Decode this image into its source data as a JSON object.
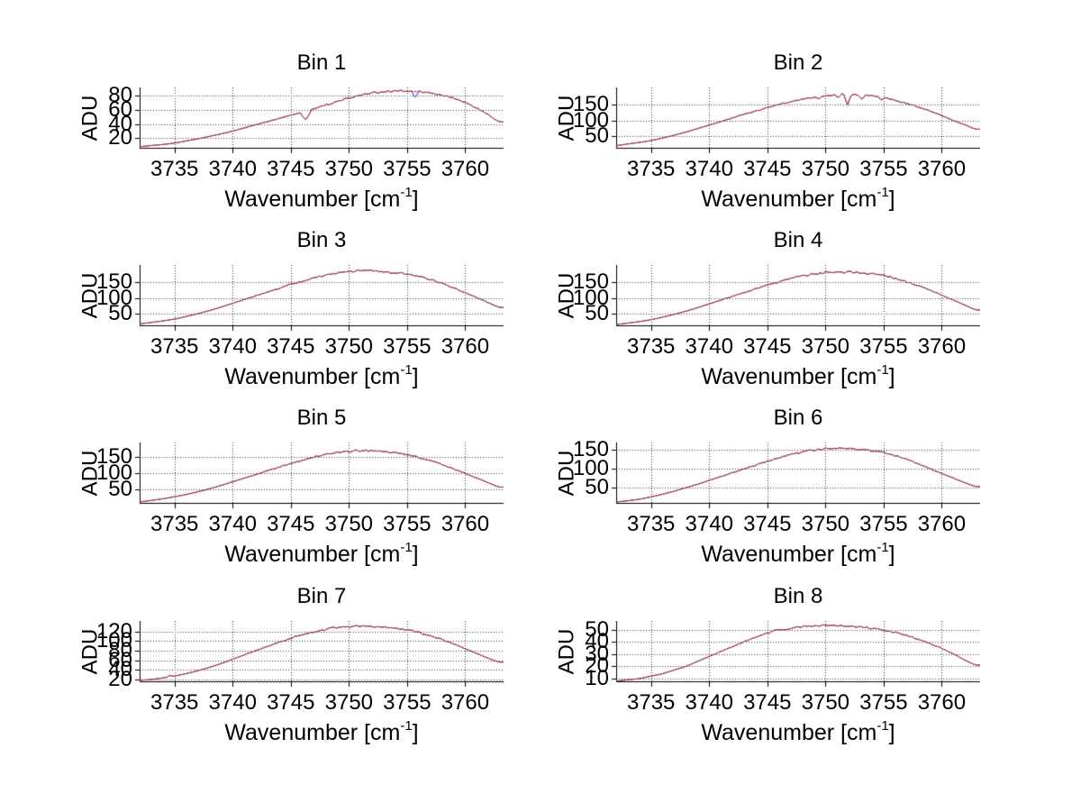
{
  "figure": {
    "background": "#ffffff",
    "text_color": "#000000",
    "axis_color": "#000000",
    "grid_color": "#3a3a3a",
    "line_color_top": "#bb3322",
    "line_color_under": "#2233aa"
  },
  "axis_labels": {
    "y": "ADU",
    "x_pre": "Wavenumber [cm",
    "x_sup": "-1",
    "x_post": "]"
  },
  "chart_data": [
    {
      "type": "line",
      "title": "Bin 1",
      "xlabel": "Wavenumber [cm-1]",
      "ylabel": "ADU",
      "xlim": [
        3732,
        3763.3
      ],
      "ylim": [
        5,
        92
      ],
      "xticks": [
        3735,
        3740,
        3745,
        3750,
        3755,
        3760
      ],
      "yticks": [
        20,
        40,
        60,
        80
      ],
      "x_start": 3732,
      "x_step": 1,
      "values": [
        8,
        9.5,
        11,
        13,
        16,
        19,
        22.5,
        26,
        30,
        34.5,
        39,
        43.5,
        48,
        52.5,
        57,
        62,
        67,
        72,
        77,
        81,
        84,
        86,
        87,
        86.5,
        85.5,
        84,
        81,
        76.5,
        70.5,
        62.5,
        53,
        43
      ],
      "noise": 1.5,
      "features": [
        {
          "x": 3746.3,
          "depth": 13,
          "width": 0.5,
          "series": "red"
        },
        {
          "x": 3755.7,
          "depth": 8,
          "width": 0.35,
          "series": "blue"
        }
      ]
    },
    {
      "type": "line",
      "title": "Bin 2",
      "xlabel": "Wavenumber [cm-1]",
      "ylabel": "ADU",
      "xlim": [
        3732,
        3763.3
      ],
      "ylim": [
        10,
        205
      ],
      "xticks": [
        3735,
        3740,
        3745,
        3750,
        3755,
        3760
      ],
      "yticks": [
        50,
        100,
        150
      ],
      "x_start": 3732,
      "x_step": 1,
      "values": [
        20,
        25,
        30,
        36,
        44,
        53,
        63,
        74,
        85,
        96,
        108,
        119,
        130,
        140,
        150,
        159,
        167,
        174,
        179,
        182,
        183,
        181,
        178,
        172,
        164,
        154,
        142,
        129,
        115,
        100,
        86,
        72
      ],
      "noise": 3,
      "features": [
        {
          "x": 3749.4,
          "depth": 9,
          "width": 0.3,
          "series": "red"
        },
        {
          "x": 3751.1,
          "depth": 10,
          "width": 0.3,
          "series": "red"
        },
        {
          "x": 3751.9,
          "depth": 33,
          "width": 0.35,
          "series": "red"
        },
        {
          "x": 3753.1,
          "depth": 12,
          "width": 0.3,
          "series": "red"
        },
        {
          "x": 3754.8,
          "depth": 7,
          "width": 0.3,
          "series": "red"
        }
      ]
    },
    {
      "type": "line",
      "title": "Bin 3",
      "xlabel": "Wavenumber [cm-1]",
      "ylabel": "ADU",
      "xlim": [
        3732,
        3763.3
      ],
      "ylim": [
        10,
        205
      ],
      "xticks": [
        3735,
        3740,
        3745,
        3750,
        3755,
        3760
      ],
      "yticks": [
        50,
        100,
        150
      ],
      "x_start": 3732,
      "x_step": 1,
      "values": [
        18,
        22,
        27,
        33,
        41,
        50,
        60,
        71,
        83,
        95,
        107,
        119,
        131,
        143,
        154,
        164,
        173,
        180,
        185,
        187,
        186,
        184,
        181,
        176,
        168,
        158,
        146,
        132,
        117,
        101,
        85,
        70
      ],
      "noise": 3.5,
      "features": []
    },
    {
      "type": "line",
      "title": "Bin 4",
      "xlabel": "Wavenumber [cm-1]",
      "ylabel": "ADU",
      "xlim": [
        3732,
        3763.3
      ],
      "ylim": [
        10,
        205
      ],
      "xticks": [
        3735,
        3740,
        3745,
        3750,
        3755,
        3760
      ],
      "yticks": [
        50,
        100,
        150
      ],
      "x_start": 3732,
      "x_step": 1,
      "values": [
        16,
        20,
        25,
        31,
        39,
        48,
        58,
        69,
        81,
        93,
        105,
        117,
        129,
        141,
        152,
        162,
        170,
        177,
        181,
        183,
        182,
        180,
        177,
        171,
        162,
        151,
        138,
        124,
        109,
        93,
        77,
        62
      ],
      "noise": 3.5,
      "features": []
    },
    {
      "type": "line",
      "title": "Bin 5",
      "xlabel": "Wavenumber [cm-1]",
      "ylabel": "ADU",
      "xlim": [
        3732,
        3763.3
      ],
      "ylim": [
        8,
        192
      ],
      "xticks": [
        3735,
        3740,
        3745,
        3750,
        3755,
        3760
      ],
      "yticks": [
        50,
        100,
        150
      ],
      "x_start": 3732,
      "x_step": 1,
      "values": [
        14,
        18,
        23,
        29,
        36,
        44,
        53,
        63,
        74,
        85,
        96,
        107,
        118,
        129,
        139,
        148,
        156,
        162,
        166,
        168,
        167,
        165,
        161,
        155,
        147,
        137,
        126,
        113,
        99,
        85,
        71,
        58
      ],
      "noise": 3,
      "features": []
    },
    {
      "type": "line",
      "title": "Bin 6",
      "xlabel": "Wavenumber [cm-1]",
      "ylabel": "ADU",
      "xlim": [
        3732,
        3763.3
      ],
      "ylim": [
        8,
        168
      ],
      "xticks": [
        3735,
        3740,
        3745,
        3750,
        3755,
        3760
      ],
      "yticks": [
        50,
        100,
        150
      ],
      "x_start": 3732,
      "x_step": 1,
      "values": [
        13,
        16,
        20,
        26,
        33,
        41,
        50,
        59,
        69,
        79,
        89,
        99,
        109,
        119,
        128,
        136,
        143,
        148,
        152,
        153,
        152,
        150,
        147,
        142,
        134,
        124,
        112,
        100,
        87,
        75,
        63,
        53
      ],
      "noise": 2.5,
      "features": []
    },
    {
      "type": "line",
      "title": "Bin 7",
      "xlabel": "Wavenumber [cm-1]",
      "ylabel": "ADU",
      "xlim": [
        3732,
        3763.3
      ],
      "ylim": [
        14,
        142
      ],
      "xticks": [
        3735,
        3740,
        3745,
        3750,
        3755,
        3760
      ],
      "yticks": [
        20,
        40,
        60,
        80,
        100,
        120
      ],
      "x_start": 3732,
      "x_step": 1,
      "values": [
        18,
        20,
        23,
        27,
        32,
        38,
        45,
        53,
        62,
        71,
        80,
        89,
        98,
        106,
        113,
        119,
        124,
        128,
        130,
        131,
        130,
        129,
        127,
        123,
        118,
        111,
        103,
        94,
        84,
        74,
        64,
        56
      ],
      "noise": 2,
      "features": [
        {
          "x": 3734.6,
          "depth": -3,
          "width": 0.3,
          "series": "red"
        }
      ]
    },
    {
      "type": "line",
      "title": "Bin 8",
      "xlabel": "Wavenumber [cm-1]",
      "ylabel": "ADU",
      "xlim": [
        3732,
        3763.3
      ],
      "ylim": [
        7,
        57
      ],
      "xticks": [
        3735,
        3740,
        3745,
        3750,
        3755,
        3760
      ],
      "yticks": [
        10,
        20,
        30,
        40,
        50
      ],
      "x_start": 3732,
      "x_step": 1,
      "values": [
        8,
        9,
        10,
        12,
        14,
        17,
        20,
        24,
        28,
        32,
        36,
        40,
        44,
        47,
        49.5,
        51,
        52.5,
        53,
        53.2,
        53,
        52.5,
        52,
        51,
        49.5,
        47.5,
        45,
        42,
        38.5,
        34.5,
        30,
        25,
        21
      ],
      "noise": 0.8,
      "features": []
    }
  ],
  "layout_note": "2x4 grid of spectra subplots"
}
